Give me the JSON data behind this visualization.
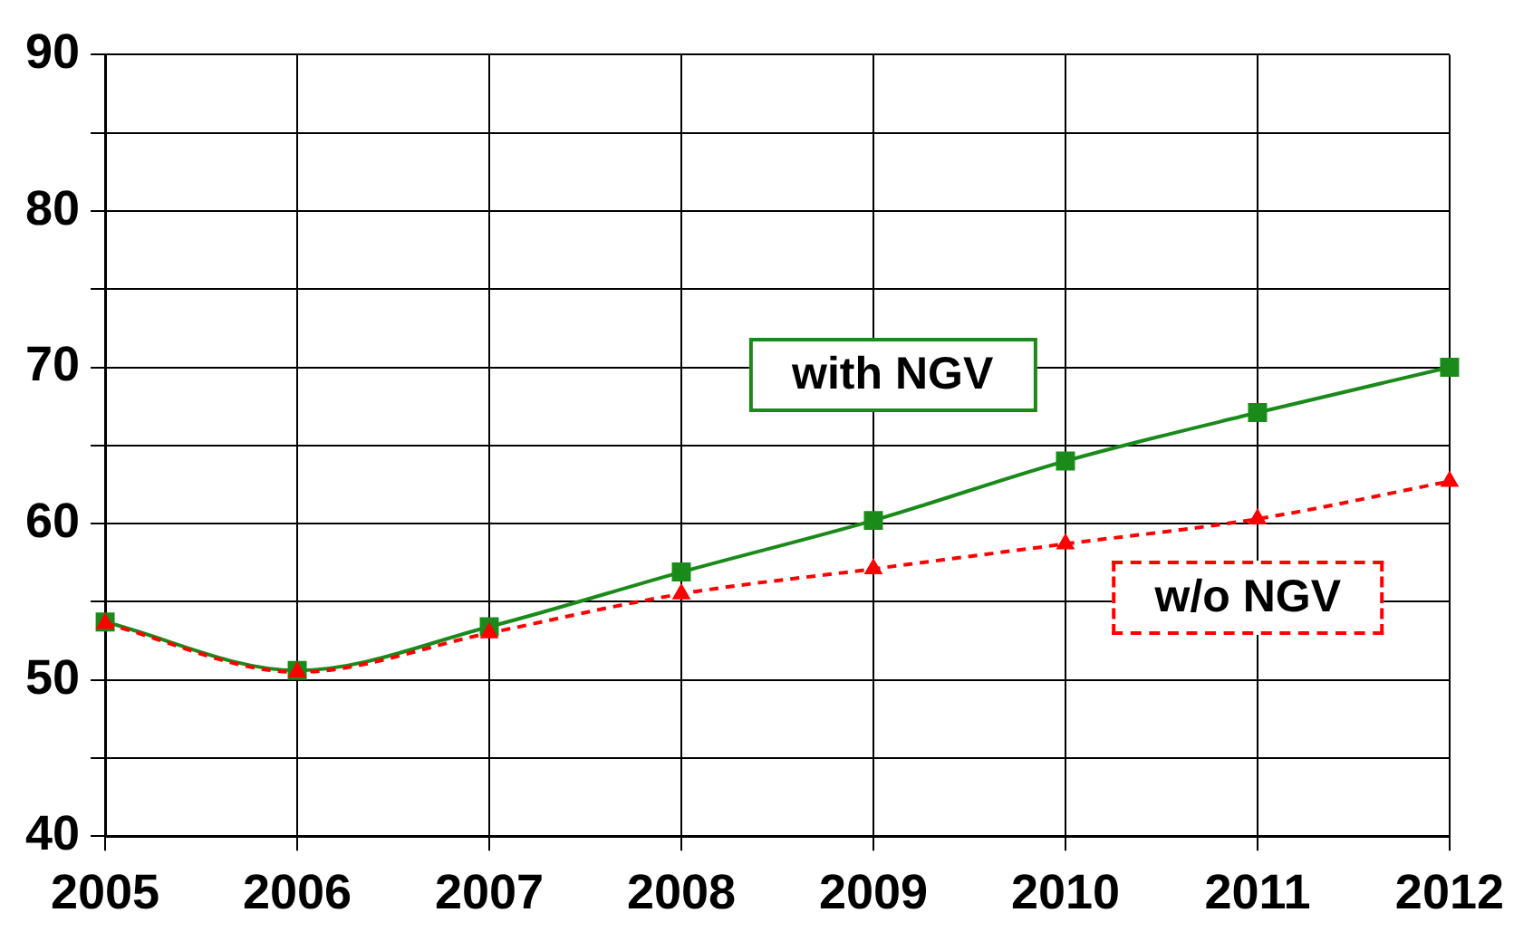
{
  "chart_data": {
    "type": "line",
    "categories": [
      "2005",
      "2006",
      "2007",
      "2008",
      "2009",
      "2010",
      "2011",
      "2012"
    ],
    "series": [
      {
        "name": "with NGV",
        "color": "#1a8a1a",
        "marker": "square",
        "line_style": "solid",
        "values": [
          53.7,
          50.6,
          53.4,
          56.9,
          60.2,
          64.0,
          67.1,
          70.0
        ]
      },
      {
        "name": "w/o NGV",
        "color": "#ff0000",
        "marker": "triangle",
        "line_style": "dashed",
        "values": [
          53.6,
          50.5,
          53.0,
          55.5,
          57.1,
          58.7,
          60.3,
          62.7
        ]
      }
    ],
    "ylim": [
      40,
      90
    ],
    "yticks": [
      40,
      {
        "value": 45,
        "label": null
      },
      50,
      {
        "value": 55,
        "label": null
      },
      60,
      {
        "value": 65,
        "label": null
      },
      70,
      {
        "value": 75,
        "label": null
      },
      80,
      {
        "value": 85,
        "label": null
      },
      90
    ],
    "grid": true,
    "legend": false
  }
}
